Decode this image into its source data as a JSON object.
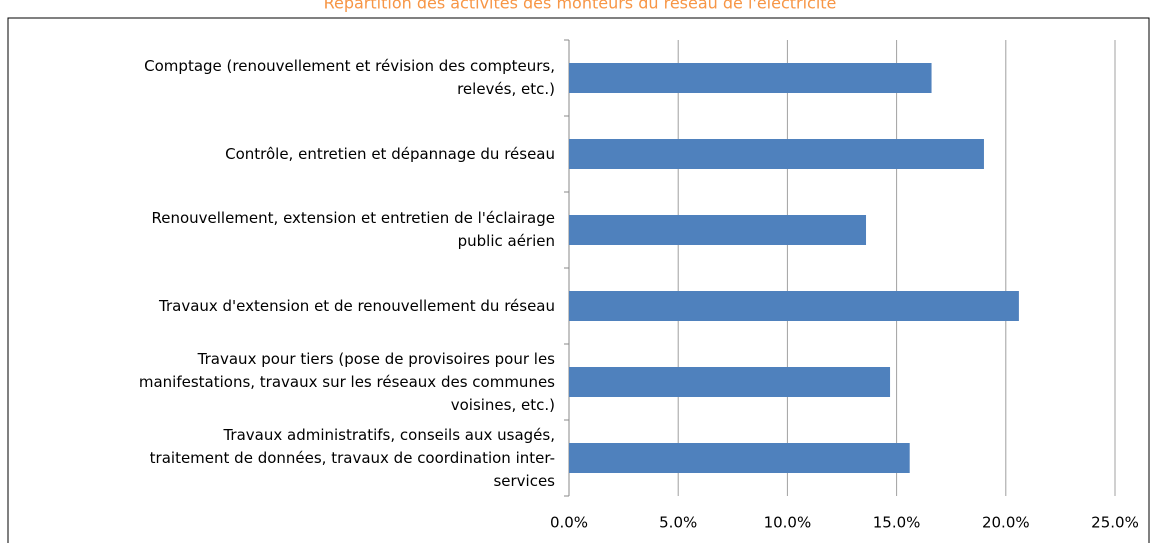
{
  "chart_data": {
    "type": "bar",
    "orientation": "horizontal",
    "title": "Répartition des activités des monteurs du réseau de l'électricité",
    "categories": [
      "Comptage (renouvellement et révision des compteurs,\nrelevés, etc.)",
      "Contrôle, entretien et dépannage du réseau",
      "Renouvellement, extension et entretien de l'éclairage\npublic aérien",
      "Travaux d'extension et de renouvellement du réseau",
      "Travaux pour tiers (pose de provisoires pour les\nmanifestations, travaux sur les réseaux des communes\nvoisines, etc.)",
      "Travaux administratifs, conseils aux usagés,\ntraitement de données, travaux de coordination inter-\nservices"
    ],
    "values": [
      16.6,
      19.0,
      13.6,
      20.6,
      14.7,
      15.6
    ],
    "color": "#4f81bd",
    "xlim": [
      0,
      25
    ],
    "xticks": [
      {
        "value": 0,
        "label": "0.0%"
      },
      {
        "value": 5,
        "label": "5.0%"
      },
      {
        "value": 10,
        "label": "10.0%"
      },
      {
        "value": 15,
        "label": "15.0%"
      },
      {
        "value": 20,
        "label": "20.0%"
      },
      {
        "value": 25,
        "label": "25.0%"
      }
    ],
    "grid": true
  }
}
